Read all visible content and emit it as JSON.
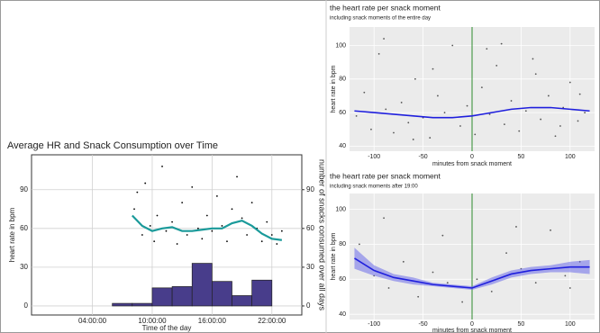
{
  "chart_data": [
    {
      "type": "combo",
      "title": "Average HR and Snack Consumption over Time",
      "x_label": "Time of the day",
      "y_label": "heart rate in bpm",
      "y_label_color": "#1a9a9a",
      "y2_label": "number of snacks consumed over all days",
      "y2_label_color": "#4b3d8f",
      "xlim": [
        -2.1,
        25
      ],
      "xticks": [
        {
          "value": 4,
          "label": "04:00:00"
        },
        {
          "value": 10,
          "label": "10:00:00"
        },
        {
          "value": 16,
          "label": "16:00:00"
        },
        {
          "value": 22,
          "label": "22:00:00"
        }
      ],
      "ylim": [
        -7,
        117
      ],
      "yticks": [
        0,
        30,
        60,
        90
      ],
      "y2lim": [
        -7,
        117
      ],
      "y2ticks": [
        0,
        30,
        60,
        90
      ],
      "grid": true,
      "histogram": {
        "bins": [
          0,
          2,
          4,
          6,
          8,
          10,
          12,
          14,
          16,
          18,
          20,
          22
        ],
        "counts": [
          0,
          0,
          0,
          2,
          2,
          14,
          15,
          33,
          19,
          8,
          20
        ],
        "color": "#483d8b",
        "axis": "y2"
      },
      "scatter": {
        "x": [
          8.2,
          8.5,
          9,
          9.3,
          9.8,
          10.2,
          10.5,
          11,
          11.4,
          12,
          12.5,
          13,
          13.5,
          14,
          14.6,
          15,
          15.5,
          16,
          16.5,
          17,
          17.5,
          18,
          18.5,
          19,
          19.5,
          20,
          20.5,
          21,
          21.5,
          22,
          22.5,
          23
        ],
        "y": [
          75,
          88,
          55,
          95,
          62,
          50,
          70,
          108,
          58,
          65,
          48,
          80,
          55,
          92,
          60,
          52,
          70,
          58,
          85,
          62,
          50,
          75,
          100,
          68,
          55,
          80,
          60,
          50,
          65,
          55,
          48,
          58
        ],
        "color": "#000000"
      },
      "line": {
        "x": [
          8,
          9,
          10,
          11,
          12,
          13,
          14,
          15,
          16,
          17,
          18,
          19,
          20,
          21,
          22,
          23
        ],
        "values": [
          70,
          62,
          58,
          60,
          61,
          58,
          58,
          59,
          60,
          60,
          64,
          66,
          62,
          56,
          52,
          51
        ],
        "color": "#1a9a9a"
      }
    },
    {
      "type": "scatter_smooth",
      "title": "the heart rate per snack moment",
      "subtitle": "including snack moments of the entire day",
      "x_label": "minutes from snack moment",
      "y_label": "heart rate in bpm",
      "xlim": [
        -125,
        125
      ],
      "xticks": [
        -100,
        -50,
        0,
        50,
        100
      ],
      "ylim": [
        37,
        111
      ],
      "yticks": [
        40,
        60,
        80,
        100
      ],
      "grid": true,
      "vline": {
        "x": 0,
        "color": "#2e8b2e"
      },
      "scatter": {
        "x": [
          -118,
          -110,
          -103,
          -95,
          -88,
          -80,
          -72,
          -65,
          -58,
          -50,
          -43,
          -35,
          -28,
          -20,
          -12,
          -5,
          3,
          10,
          18,
          25,
          33,
          40,
          48,
          55,
          62,
          70,
          78,
          85,
          93,
          100,
          108,
          115,
          -90,
          -40,
          15,
          65,
          110,
          -60,
          30,
          90
        ],
        "y": [
          58,
          72,
          50,
          95,
          62,
          48,
          66,
          54,
          80,
          57,
          45,
          70,
          60,
          100,
          52,
          64,
          47,
          75,
          59,
          88,
          53,
          67,
          49,
          61,
          92,
          56,
          70,
          46,
          63,
          78,
          55,
          60,
          104,
          86,
          98,
          83,
          71,
          44,
          101,
          52
        ],
        "color": "#555555"
      },
      "line": {
        "x": [
          -120,
          -100,
          -80,
          -60,
          -40,
          -20,
          0,
          20,
          40,
          60,
          80,
          100,
          120
        ],
        "values": [
          61,
          60,
          59,
          58,
          57,
          57,
          58,
          60,
          62,
          63,
          63,
          62,
          61
        ],
        "color": "#1f1fdd"
      }
    },
    {
      "type": "scatter_smooth",
      "title": "the heart rate per snack moment",
      "subtitle": "including snack moments after 19:00",
      "x_label": "minutes from snack moment",
      "y_label": "heart rate in bpm",
      "xlim": [
        -125,
        125
      ],
      "xticks": [
        -100,
        -50,
        0,
        50,
        100
      ],
      "ylim": [
        37,
        109
      ],
      "yticks": [
        40,
        60,
        80,
        100
      ],
      "grid": true,
      "vline": {
        "x": 0,
        "color": "#2e8b2e"
      },
      "scatter": {
        "x": [
          -115,
          -100,
          -85,
          -70,
          -55,
          -40,
          -25,
          -10,
          5,
          20,
          35,
          50,
          65,
          80,
          95,
          110,
          -90,
          -30,
          45,
          100
        ],
        "y": [
          80,
          62,
          55,
          70,
          50,
          64,
          58,
          47,
          60,
          53,
          75,
          66,
          58,
          88,
          62,
          70,
          95,
          85,
          90,
          55
        ],
        "color": "#555555"
      },
      "line": {
        "x": [
          -120,
          -100,
          -80,
          -60,
          -40,
          -20,
          0,
          20,
          40,
          60,
          80,
          100,
          120
        ],
        "values": [
          72,
          65,
          61,
          59,
          57,
          56,
          55,
          59,
          63,
          65,
          66,
          67,
          67
        ],
        "lower": [
          66,
          62,
          59,
          57,
          56,
          55,
          54,
          57,
          61,
          63,
          64,
          64,
          63
        ],
        "upper": [
          78,
          68,
          63,
          61,
          58,
          57,
          56,
          61,
          65,
          67,
          68,
          70,
          71
        ],
        "color": "#1f1fdd",
        "band_color": "#6b6bea"
      }
    }
  ]
}
